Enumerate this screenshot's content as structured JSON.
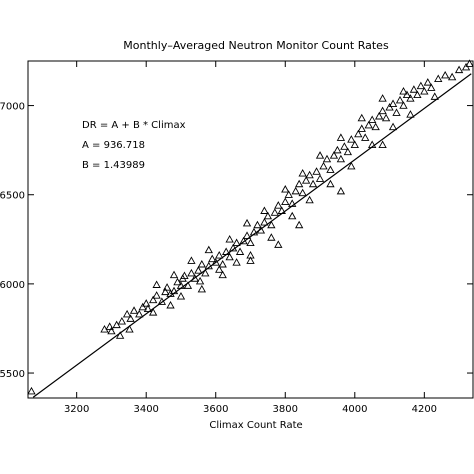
{
  "chart_data": {
    "type": "scatter",
    "title": "Monthly–Averaged Neutron Monitor Count Rates",
    "xlabel": "Climax Count Rate",
    "ylabel": "",
    "xlim": [
      3060,
      4340
    ],
    "ylim": [
      5360,
      7250
    ],
    "grid": false,
    "x_ticks": [
      3200,
      3400,
      3600,
      3800,
      4000,
      4200
    ],
    "x_tick_labels": [
      "3200",
      "3400",
      "3600",
      "3800",
      "4000",
      "4200"
    ],
    "y_ticks": [
      5500,
      6000,
      6500,
      7000
    ],
    "y_tick_labels": [
      "5500",
      "6000",
      "6500",
      "7000"
    ],
    "annotations": [
      "DR = A + B * Climax",
      "A = 936.718",
      "B = 1.43989"
    ],
    "fit": {
      "intercept": 936.718,
      "slope": 1.43989
    },
    "marker": "triangle",
    "points": [
      [
        3070,
        5398
      ],
      [
        3280,
        5745
      ],
      [
        3295,
        5760
      ],
      [
        3300,
        5735
      ],
      [
        3315,
        5770
      ],
      [
        3330,
        5790
      ],
      [
        3345,
        5830
      ],
      [
        3355,
        5805
      ],
      [
        3365,
        5850
      ],
      [
        3380,
        5830
      ],
      [
        3390,
        5870
      ],
      [
        3400,
        5890
      ],
      [
        3405,
        5860
      ],
      [
        3420,
        5910
      ],
      [
        3430,
        5935
      ],
      [
        3445,
        5900
      ],
      [
        3455,
        5955
      ],
      [
        3460,
        5980
      ],
      [
        3470,
        5945
      ],
      [
        3480,
        5960
      ],
      [
        3490,
        6010
      ],
      [
        3500,
        5990
      ],
      [
        3505,
        6030
      ],
      [
        3510,
        6045
      ],
      [
        3520,
        5990
      ],
      [
        3530,
        6060
      ],
      [
        3540,
        6030
      ],
      [
        3550,
        6075
      ],
      [
        3560,
        6110
      ],
      [
        3570,
        6060
      ],
      [
        3580,
        6100
      ],
      [
        3590,
        6140
      ],
      [
        3600,
        6120
      ],
      [
        3610,
        6160
      ],
      [
        3620,
        6110
      ],
      [
        3630,
        6180
      ],
      [
        3640,
        6150
      ],
      [
        3650,
        6200
      ],
      [
        3660,
        6230
      ],
      [
        3670,
        6180
      ],
      [
        3680,
        6240
      ],
      [
        3690,
        6270
      ],
      [
        3700,
        6230
      ],
      [
        3710,
        6290
      ],
      [
        3720,
        6330
      ],
      [
        3730,
        6300
      ],
      [
        3740,
        6345
      ],
      [
        3750,
        6380
      ],
      [
        3760,
        6330
      ],
      [
        3770,
        6400
      ],
      [
        3780,
        6440
      ],
      [
        3790,
        6410
      ],
      [
        3800,
        6460
      ],
      [
        3810,
        6500
      ],
      [
        3820,
        6450
      ],
      [
        3830,
        6520
      ],
      [
        3840,
        6560
      ],
      [
        3850,
        6510
      ],
      [
        3860,
        6580
      ],
      [
        3870,
        6610
      ],
      [
        3880,
        6560
      ],
      [
        3890,
        6630
      ],
      [
        3900,
        6590
      ],
      [
        3910,
        6660
      ],
      [
        3920,
        6700
      ],
      [
        3930,
        6640
      ],
      [
        3940,
        6720
      ],
      [
        3950,
        6750
      ],
      [
        3960,
        6700
      ],
      [
        3970,
        6770
      ],
      [
        3980,
        6740
      ],
      [
        3990,
        6810
      ],
      [
        4000,
        6780
      ],
      [
        4010,
        6840
      ],
      [
        4020,
        6870
      ],
      [
        4030,
        6820
      ],
      [
        4040,
        6890
      ],
      [
        4050,
        6920
      ],
      [
        4060,
        6880
      ],
      [
        4070,
        6940
      ],
      [
        4080,
        6970
      ],
      [
        4090,
        6930
      ],
      [
        4100,
        6990
      ],
      [
        4110,
        7010
      ],
      [
        4120,
        6960
      ],
      [
        4130,
        7030
      ],
      [
        4140,
        7000
      ],
      [
        4150,
        7060
      ],
      [
        4160,
        7040
      ],
      [
        4170,
        7090
      ],
      [
        4180,
        7060
      ],
      [
        4190,
        7110
      ],
      [
        4200,
        7080
      ],
      [
        4210,
        7130
      ],
      [
        4220,
        7100
      ],
      [
        4240,
        7150
      ],
      [
        4260,
        7170
      ],
      [
        4280,
        7160
      ],
      [
        4300,
        7200
      ],
      [
        4320,
        7215
      ],
      [
        4330,
        7235
      ],
      [
        3325,
        5710
      ],
      [
        3352,
        5745
      ],
      [
        3420,
        5840
      ],
      [
        3470,
        5880
      ],
      [
        3500,
        5930
      ],
      [
        3555,
        6015
      ],
      [
        3610,
        6080
      ],
      [
        3660,
        6120
      ],
      [
        3700,
        6160
      ],
      [
        3760,
        6260
      ],
      [
        3820,
        6380
      ],
      [
        3870,
        6470
      ],
      [
        3930,
        6560
      ],
      [
        3990,
        6660
      ],
      [
        4050,
        6780
      ],
      [
        4110,
        6880
      ],
      [
        4160,
        6950
      ],
      [
        4230,
        7050
      ],
      [
        3430,
        5995
      ],
      [
        3480,
        6050
      ],
      [
        3530,
        6130
      ],
      [
        3580,
        6190
      ],
      [
        3640,
        6250
      ],
      [
        3690,
        6340
      ],
      [
        3740,
        6410
      ],
      [
        3800,
        6530
      ],
      [
        3850,
        6620
      ],
      [
        3900,
        6720
      ],
      [
        3960,
        6820
      ],
      [
        4020,
        6930
      ],
      [
        4080,
        7040
      ],
      [
        4140,
        7080
      ],
      [
        3560,
        5970
      ],
      [
        3620,
        6050
      ],
      [
        3700,
        6130
      ],
      [
        3780,
        6220
      ],
      [
        3840,
        6330
      ],
      [
        3960,
        6520
      ],
      [
        4080,
        6780
      ]
    ]
  }
}
